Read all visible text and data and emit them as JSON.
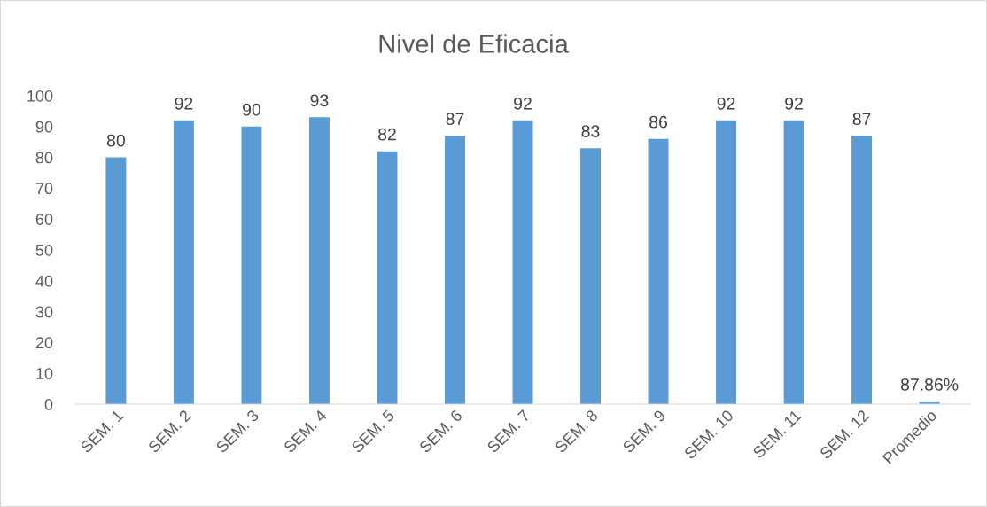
{
  "chart_data": {
    "type": "bar",
    "title": "Nivel de Eficacia",
    "categories": [
      "SEM. 1",
      "SEM. 2",
      "SEM. 3",
      "SEM. 4",
      "SEM. 5",
      "SEM. 6",
      "SEM. 7",
      "SEM. 8",
      "SEM. 9",
      "SEM. 10",
      "SEM. 11",
      "SEM. 12",
      "Promedio"
    ],
    "values": [
      80,
      92,
      90,
      93,
      82,
      87,
      92,
      83,
      86,
      92,
      92,
      87,
      0.8786
    ],
    "value_labels": [
      "80",
      "92",
      "90",
      "93",
      "82",
      "87",
      "92",
      "83",
      "86",
      "92",
      "92",
      "87",
      "87.86%"
    ],
    "color": "#5b9bd5",
    "ylim": [
      0,
      100
    ],
    "yticks": [
      0,
      10,
      20,
      30,
      40,
      50,
      60,
      70,
      80,
      90,
      100
    ],
    "grid": false
  }
}
